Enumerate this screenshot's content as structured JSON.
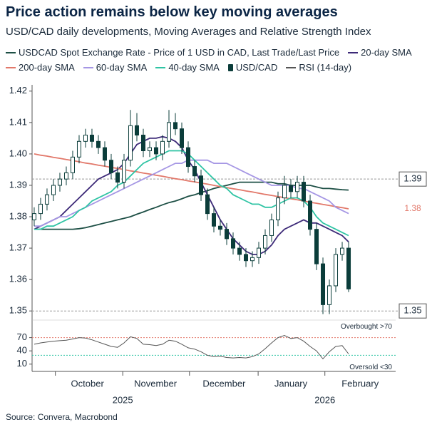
{
  "chart_data": {
    "type": "candlestick",
    "title": "Price action remains below key moving averages",
    "subtitle": "USD/CAD daily developments, Moving Averages and Relative Strength Index",
    "source": "Source: Convera, Macrobond",
    "categories": [
      null,
      null,
      null,
      null,
      null,
      null,
      null,
      null,
      null,
      null,
      null,
      null,
      null,
      null,
      null,
      null,
      null,
      null,
      null,
      null,
      null,
      null,
      null,
      null,
      null,
      null,
      null,
      null,
      null,
      null,
      null,
      null,
      null,
      null,
      null,
      null,
      null,
      null,
      null,
      null,
      null,
      null,
      null,
      null,
      null,
      null,
      null,
      null,
      null,
      null
    ],
    "ohlc": {
      "name": "USD/CAD",
      "color": "#0b3d3a",
      "open": [
        1.379,
        1.381,
        1.384,
        1.387,
        1.39,
        1.392,
        1.394,
        1.399,
        1.404,
        1.406,
        1.404,
        1.402,
        1.398,
        1.394,
        1.391,
        1.398,
        1.409,
        1.406,
        1.401,
        1.402,
        1.4,
        1.404,
        1.41,
        1.408,
        1.402,
        1.396,
        1.393,
        1.387,
        1.381,
        1.377,
        1.376,
        1.373,
        1.37,
        1.368,
        1.366,
        1.367,
        1.37,
        1.374,
        1.379,
        1.386,
        1.39,
        1.388,
        1.391,
        1.385,
        1.376,
        1.365,
        1.352,
        1.358,
        1.368,
        1.37
      ],
      "high": [
        1.383,
        1.386,
        1.389,
        1.392,
        1.394,
        1.396,
        1.401,
        1.406,
        1.408,
        1.408,
        1.406,
        1.404,
        1.4,
        1.396,
        1.4,
        1.414,
        1.413,
        1.408,
        1.404,
        1.404,
        1.406,
        1.414,
        1.413,
        1.41,
        1.404,
        1.398,
        1.395,
        1.389,
        1.383,
        1.379,
        1.378,
        1.375,
        1.372,
        1.37,
        1.369,
        1.372,
        1.376,
        1.381,
        1.388,
        1.393,
        1.392,
        1.393,
        1.393,
        1.387,
        1.378,
        1.367,
        1.36,
        1.37,
        1.372,
        1.372
      ],
      "low": [
        1.377,
        1.379,
        1.382,
        1.385,
        1.388,
        1.39,
        1.392,
        1.397,
        1.402,
        1.402,
        1.4,
        1.396,
        1.392,
        1.389,
        1.389,
        1.396,
        1.404,
        1.399,
        1.399,
        1.398,
        1.398,
        1.402,
        1.406,
        1.4,
        1.394,
        1.391,
        1.385,
        1.379,
        1.375,
        1.374,
        1.371,
        1.368,
        1.366,
        1.364,
        1.364,
        1.365,
        1.368,
        1.372,
        1.377,
        1.384,
        1.386,
        1.386,
        1.383,
        1.374,
        1.363,
        1.349,
        1.349,
        1.356,
        1.366,
        1.356
      ],
      "close": [
        1.381,
        1.384,
        1.387,
        1.39,
        1.392,
        1.394,
        1.399,
        1.404,
        1.406,
        1.404,
        1.402,
        1.398,
        1.394,
        1.391,
        1.398,
        1.409,
        1.406,
        1.401,
        1.402,
        1.4,
        1.404,
        1.41,
        1.408,
        1.402,
        1.396,
        1.393,
        1.387,
        1.381,
        1.377,
        1.376,
        1.373,
        1.37,
        1.368,
        1.366,
        1.367,
        1.37,
        1.374,
        1.379,
        1.386,
        1.39,
        1.388,
        1.391,
        1.385,
        1.376,
        1.365,
        1.352,
        1.358,
        1.368,
        1.37,
        1.357
      ]
    },
    "series": [
      {
        "name": "USDCAD Spot Exchange Rate - Price of 1 USD in CAD, Last Trade/Last Price",
        "color": "#1d4f45",
        "values": [
          1.376,
          1.376,
          1.376,
          1.376,
          1.376,
          1.376,
          1.376,
          1.3762,
          1.3765,
          1.377,
          1.3775,
          1.378,
          1.3785,
          1.379,
          1.3795,
          1.38,
          1.3808,
          1.3815,
          1.3823,
          1.383,
          1.3838,
          1.3845,
          1.385,
          1.3857,
          1.3865,
          1.387,
          1.3877,
          1.3883,
          1.389,
          1.3895,
          1.39,
          1.3905,
          1.391,
          1.391,
          1.391,
          1.391,
          1.391,
          1.391,
          1.3905,
          1.3905,
          1.39,
          1.39,
          1.39,
          1.39,
          1.3895,
          1.389,
          1.389,
          1.3888,
          1.3886,
          1.3885
        ]
      },
      {
        "name": "20-day SMA",
        "color": "#3d2a78",
        "values": [
          1.376,
          1.377,
          1.378,
          1.379,
          1.38,
          1.382,
          1.384,
          1.386,
          1.388,
          1.39,
          1.392,
          1.393,
          1.394,
          1.395,
          1.397,
          1.4,
          1.403,
          1.404,
          1.405,
          1.405,
          1.4055,
          1.405,
          1.404,
          1.402,
          1.398,
          1.395,
          1.391,
          1.387,
          1.383,
          1.379,
          1.376,
          1.373,
          1.371,
          1.369,
          1.368,
          1.368,
          1.369,
          1.371,
          1.374,
          1.376,
          1.377,
          1.378,
          1.379,
          1.378,
          1.378,
          1.377,
          1.376,
          1.375,
          1.374,
          1.372
        ]
      },
      {
        "name": "200-day SMA",
        "color": "#e2786a",
        "values": [
          1.4,
          1.3996,
          1.3993,
          1.3989,
          1.3986,
          1.3982,
          1.3979,
          1.3975,
          1.3971,
          1.3968,
          1.3964,
          1.3961,
          1.3957,
          1.3954,
          1.395,
          1.3946,
          1.3943,
          1.3939,
          1.3936,
          1.3932,
          1.3929,
          1.3925,
          1.3921,
          1.3918,
          1.3914,
          1.3911,
          1.3907,
          1.3904,
          1.39,
          1.3896,
          1.3893,
          1.3889,
          1.3886,
          1.3882,
          1.3879,
          1.3875,
          1.3871,
          1.3868,
          1.3864,
          1.3861,
          1.3857,
          1.3854,
          1.385,
          1.3846,
          1.3843,
          1.3839,
          1.3836,
          1.3832,
          1.3829,
          1.3825
        ]
      },
      {
        "name": "60-day SMA",
        "color": "#a596e4",
        "values": [
          1.377,
          1.377,
          1.378,
          1.379,
          1.38,
          1.38,
          1.381,
          1.382,
          1.383,
          1.384,
          1.385,
          1.386,
          1.387,
          1.388,
          1.389,
          1.39,
          1.391,
          1.392,
          1.393,
          1.394,
          1.395,
          1.396,
          1.397,
          1.397,
          1.398,
          1.398,
          1.398,
          1.398,
          1.397,
          1.397,
          1.397,
          1.396,
          1.395,
          1.394,
          1.393,
          1.392,
          1.391,
          1.39,
          1.39,
          1.39,
          1.39,
          1.389,
          1.389,
          1.388,
          1.387,
          1.386,
          1.385,
          1.383,
          1.382,
          1.381
        ]
      },
      {
        "name": "40-day SMA",
        "color": "#2fc4a4",
        "values": [
          1.376,
          1.376,
          1.377,
          1.377,
          1.378,
          1.379,
          1.38,
          1.382,
          1.383,
          1.385,
          1.386,
          1.387,
          1.388,
          1.39,
          1.391,
          1.393,
          1.395,
          1.397,
          1.398,
          1.399,
          1.4,
          1.401,
          1.401,
          1.401,
          1.4,
          1.398,
          1.396,
          1.394,
          1.392,
          1.39,
          1.389,
          1.387,
          1.386,
          1.385,
          1.384,
          1.384,
          1.383,
          1.383,
          1.384,
          1.385,
          1.386,
          1.386,
          1.385,
          1.383,
          1.38,
          1.378,
          1.377,
          1.376,
          1.375,
          1.374
        ]
      }
    ],
    "rsi": {
      "name": "RSI (14-day)",
      "color": "#555555",
      "values": [
        55,
        58,
        60,
        62,
        63,
        64,
        67,
        70,
        69,
        65,
        60,
        55,
        50,
        48,
        58,
        72,
        68,
        55,
        54,
        52,
        55,
        64,
        62,
        55,
        47,
        44,
        38,
        30,
        27,
        28,
        25,
        24,
        25,
        24,
        27,
        33,
        45,
        58,
        70,
        75,
        68,
        70,
        62,
        50,
        40,
        22,
        38,
        50,
        52,
        33
      ],
      "ylim": [
        0,
        100
      ],
      "yticks": [
        10,
        40,
        70
      ],
      "overbought": {
        "value": 70,
        "label": "Overbought >70",
        "color": "#e2786a"
      },
      "oversold": {
        "value": 30,
        "label": "Oversold <30",
        "color": "#2fc4a4"
      }
    },
    "ylim": [
      1.348,
      1.422
    ],
    "yticks": [
      1.35,
      1.36,
      1.37,
      1.38,
      1.39,
      {
        "value": 1.4,
        "label": "1.40"
      },
      1.41,
      1.42
    ],
    "xlim": [
      -0.33,
      56.33
    ],
    "xticks": [
      3.3,
      13.8,
      24.2,
      34.9,
      45.3
    ],
    "month_labels": [
      {
        "value": 8.3,
        "label": "October"
      },
      {
        "value": 18.9,
        "label": "November"
      },
      {
        "value": 29.6,
        "label": "December"
      },
      {
        "value": 40,
        "label": "January"
      },
      {
        "value": 50.8,
        "label": "February"
      }
    ],
    "year_labels": [
      {
        "value": 13.8,
        "label": "2025"
      },
      {
        "value": 45.3,
        "label": "2026"
      }
    ],
    "annotations": [
      {
        "value": 1.392,
        "label": "1.39"
      },
      {
        "value": 1.35,
        "label": "1.35"
      }
    ],
    "last_200": {
      "value": 1.3825,
      "label": "1.38",
      "color": "#e2786a"
    }
  }
}
